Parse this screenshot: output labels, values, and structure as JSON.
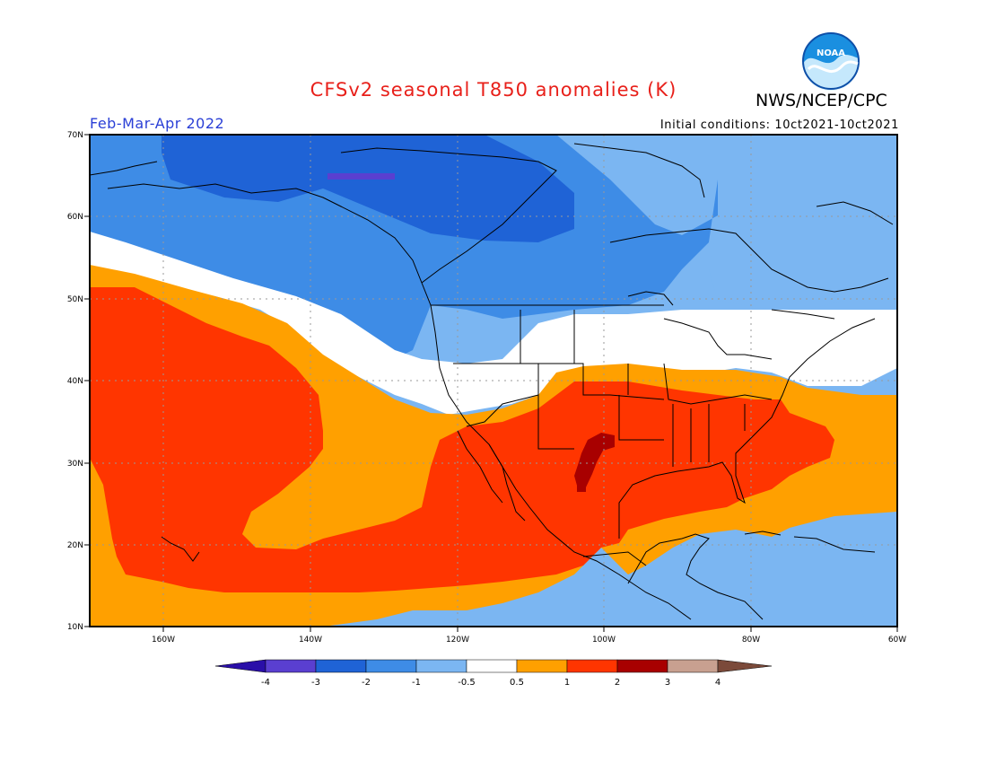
{
  "title": "CFSv2 seasonal T850 anomalies (K)",
  "agency": "NWS/NCEP/CPC",
  "logo_text": "NOAA",
  "period": "Feb-Mar-Apr 2022",
  "initial_conditions": "Initial conditions: 10ct2021-10ct2021",
  "map": {
    "lon_range": [
      -172,
      -60
    ],
    "lat_range": [
      10,
      70
    ],
    "lon_ticks": [
      "160W",
      "140W",
      "120W",
      "100W",
      "80W",
      "60W"
    ],
    "lat_ticks": [
      "70N",
      "60N",
      "50N",
      "40N",
      "30N",
      "20N",
      "10N"
    ]
  },
  "legend": {
    "labels": [
      "-4",
      "-3",
      "-2",
      "-1",
      "-0.5",
      "0.5",
      "1",
      "2",
      "3",
      "4"
    ],
    "colors": [
      "#2a0fa8",
      "#5a3fd0",
      "#1f63d6",
      "#3e8ce6",
      "#7bb6f2",
      "#ffffff",
      "#ffa000",
      "#ff3500",
      "#a80000",
      "#c8a090",
      "#7b4a3a"
    ]
  }
}
